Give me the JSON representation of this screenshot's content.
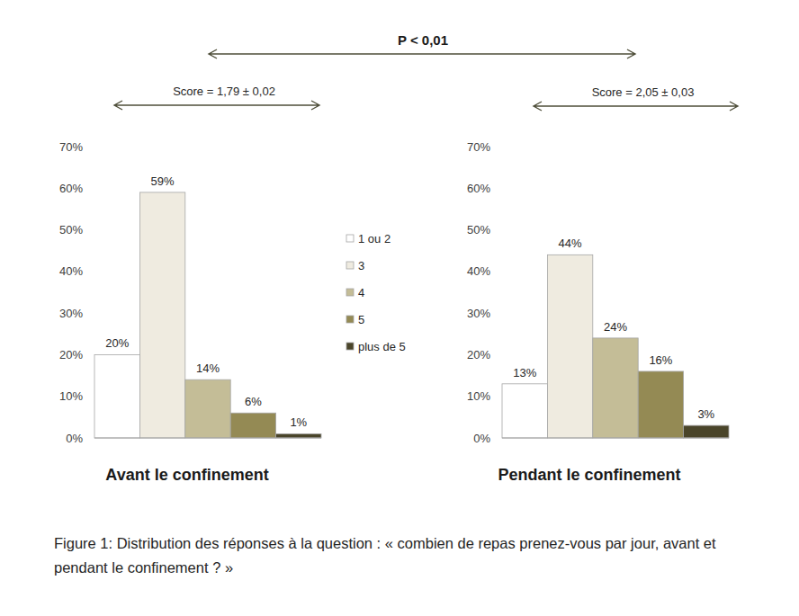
{
  "chart_data": [
    {
      "type": "bar",
      "title": "Avant le confinement",
      "categories": [
        "1 ou 2",
        "3",
        "4",
        "5",
        "plus de 5"
      ],
      "values": [
        20,
        59,
        14,
        6,
        1
      ],
      "value_labels": [
        "20%",
        "59%",
        "14%",
        "6%",
        "1%"
      ],
      "colors": [
        "#ffffff",
        "#efebe0",
        "#c4bd97",
        "#948a54",
        "#4a452a"
      ],
      "ylim": [
        0,
        70
      ],
      "yticks": [
        {
          "value": 0,
          "label": "0%"
        },
        {
          "value": 10,
          "label": "10%"
        },
        {
          "value": 20,
          "label": "20%"
        },
        {
          "value": 30,
          "label": "30%"
        },
        {
          "value": 40,
          "label": "40%"
        },
        {
          "value": 50,
          "label": "50%"
        },
        {
          "value": 60,
          "label": "60%"
        },
        {
          "value": 70,
          "label": "70%"
        }
      ],
      "grid": false,
      "data_labels": true,
      "legend": "right",
      "annotations": [
        "Score = 1,79 ± 0,02"
      ]
    },
    {
      "type": "bar",
      "title": "Pendant le confinement",
      "categories": [
        "1 ou 2",
        "3",
        "4",
        "5",
        "plus de 5"
      ],
      "values": [
        13,
        44,
        24,
        16,
        3
      ],
      "value_labels": [
        "13%",
        "44%",
        "24%",
        "16%",
        "3%"
      ],
      "colors": [
        "#ffffff",
        "#efebe0",
        "#c4bd97",
        "#948a54",
        "#4a452a"
      ],
      "ylim": [
        0,
        70
      ],
      "yticks": [
        {
          "value": 0,
          "label": "0%"
        },
        {
          "value": 10,
          "label": "10%"
        },
        {
          "value": 20,
          "label": "20%"
        },
        {
          "value": 30,
          "label": "30%"
        },
        {
          "value": 40,
          "label": "40%"
        },
        {
          "value": 50,
          "label": "50%"
        },
        {
          "value": 60,
          "label": "60%"
        },
        {
          "value": 70,
          "label": "70%"
        }
      ],
      "grid": false,
      "data_labels": true,
      "annotations": [
        "Score = 2,05 ± 0,03"
      ]
    }
  ],
  "figure": {
    "comparison": "P < 0,01",
    "caption": "Figure 1: Distribution des réponses à la question : « combien de repas prenez-vous par jour, avant et pendant le confinement ? »"
  }
}
